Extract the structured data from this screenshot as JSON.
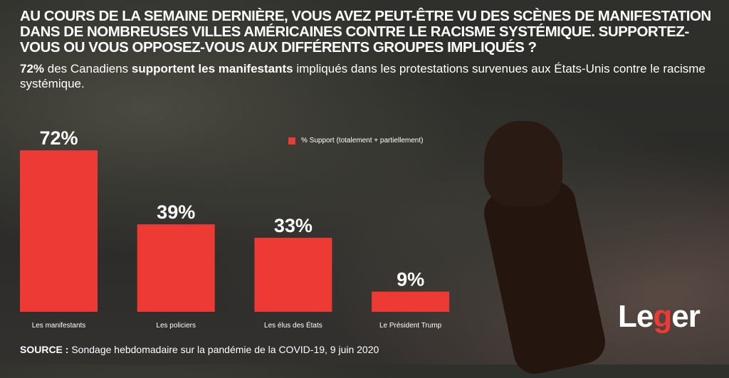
{
  "title": "Au cours de la semaine dernière, vous avez peut-être vu des scènes de manifestation dans de nombreuses villes américaines contre le racisme systémique. Supportez-vous ou vous opposez-vous aux différents groupes impliqués ?",
  "subtitle": {
    "pct": "72%",
    "t1": " des Canadiens ",
    "bold": "supportent les manifestants",
    "t2": " impliqués dans les protestations survenues aux États-Unis contre le racisme systémique."
  },
  "source": {
    "label": "SOURCE :",
    "text": " Sondage hebdomadaire sur la pandémie de la COVID-19, 9 juin 2020"
  },
  "logo": {
    "l": "Le",
    "g": "g",
    "r": "er"
  },
  "colors": {
    "bar": "#ee3a35"
  },
  "chart_data": {
    "type": "bar",
    "categories": [
      "Les manifestants",
      "Les policiers",
      "Les élus des États",
      "Le Président Trump"
    ],
    "series": [
      {
        "name": "% Support (totalement + partiellement)",
        "values": [
          72,
          39,
          33,
          9
        ]
      }
    ],
    "data_labels": [
      "72%",
      "39%",
      "33%",
      "9%"
    ],
    "legend": "top-center",
    "ylim": [
      0,
      100
    ],
    "grid": false
  }
}
